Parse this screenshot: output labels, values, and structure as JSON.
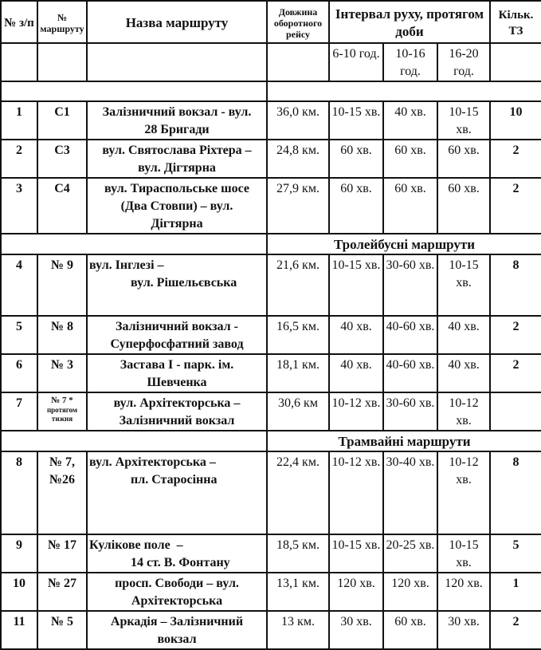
{
  "header": {
    "num": "№ з/п",
    "route_no": "№ маршруту",
    "name": "Назва маршруту",
    "length": "Довжина оборотного рейсу",
    "interval": "Інтервал руху, протягом доби",
    "count": "Кільк. ТЗ",
    "periods": [
      "6-10 год.",
      "10-16 год.",
      "16-20 год."
    ]
  },
  "sections": {
    "trolleybus": "Тролейбусні маршрути",
    "tram": "Трамвайні маршрути"
  },
  "rows": [
    {
      "num": "1",
      "route": "С1",
      "name": "Залізничний вокзал -    вул.\n28 Бригади",
      "length": "36,0 км.",
      "i1": "10-15 хв.",
      "i2": "40 хв.",
      "i3": "10-15 хв.",
      "count": "10"
    },
    {
      "num": "2",
      "route": "С3",
      "name": "вул. Святослава Ріхтера –\nвул. Дігтярна",
      "length": "24,8 км.",
      "i1": "60 хв.",
      "i2": "60 хв.",
      "i3": "60 хв.",
      "count": "2"
    },
    {
      "num": "3",
      "route": "С4",
      "name": "вул. Тираспольське шосе\n(Два Стовпи) –  вул.\nДігтярна",
      "length": "27,9 км.",
      "i1": "60 хв.",
      "i2": "60 хв.",
      "i3": "60 хв.",
      "count": "2"
    },
    {
      "num": "4",
      "route": "№ 9",
      "name": "вул. Інглезі –\n             вул. Рішельєвська",
      "length": "21,6 км.",
      "i1": "10-15 хв.",
      "i2": "30-60 хв.",
      "i3": "10-15 хв.",
      "count": "8"
    },
    {
      "num": "5",
      "route": "№ 8",
      "name": "Залізничний вокзал -\nСуперфосфатний завод",
      "length": "16,5 км.",
      "i1": "40 хв.",
      "i2": "40-60 хв.",
      "i3": "40 хв.",
      "count": "2"
    },
    {
      "num": "6",
      "route": "№ 3",
      "name": "Застава І - парк. ім.\nШевченка",
      "length": "18,1 км.",
      "i1": "40 хв.",
      "i2": "40-60 хв.",
      "i3": "40 хв.",
      "count": "2"
    },
    {
      "num": "7",
      "route": "№ 7 *",
      "route_note": "протягом тижня",
      "name": "вул. Архітекторська –\nЗалізничний вокзал",
      "length": "30,6 км",
      "i1": "10-12 хв.",
      "i2": "30-60 хв.",
      "i3": "10-12 хв.",
      "count": ""
    },
    {
      "num": "8",
      "route": "№ 7, №26",
      "name": "вул. Архітекторська –\n             пл. Старосінна",
      "length": "22,4 км.",
      "i1": "10-12 хв.",
      "i2": "30-40 хв.",
      "i3": "10-12 хв.",
      "count": "8"
    },
    {
      "num": "9",
      "route": "№ 17",
      "name": "Кулікове поле  –\n             14 ст. В. Фонтану",
      "length": "18,5 км.",
      "i1": "10-15 хв.",
      "i2": "20-25 хв.",
      "i3": "10-15 хв.",
      "count": "5"
    },
    {
      "num": "10",
      "route": "№ 27",
      "name": "просп. Свободи – вул.\nАрхітекторська",
      "length": "13,1 км.",
      "i1": "120 хв.",
      "i2": "120 хв.",
      "i3": "120 хв.",
      "count": "1"
    },
    {
      "num": "11",
      "route": "№ 5",
      "name": "Аркадія – Залізничний\nвокзал",
      "length": "13 км.",
      "i1": "30 хв.",
      "i2": "60 хв.",
      "i3": "30 хв.",
      "count": "2"
    }
  ]
}
